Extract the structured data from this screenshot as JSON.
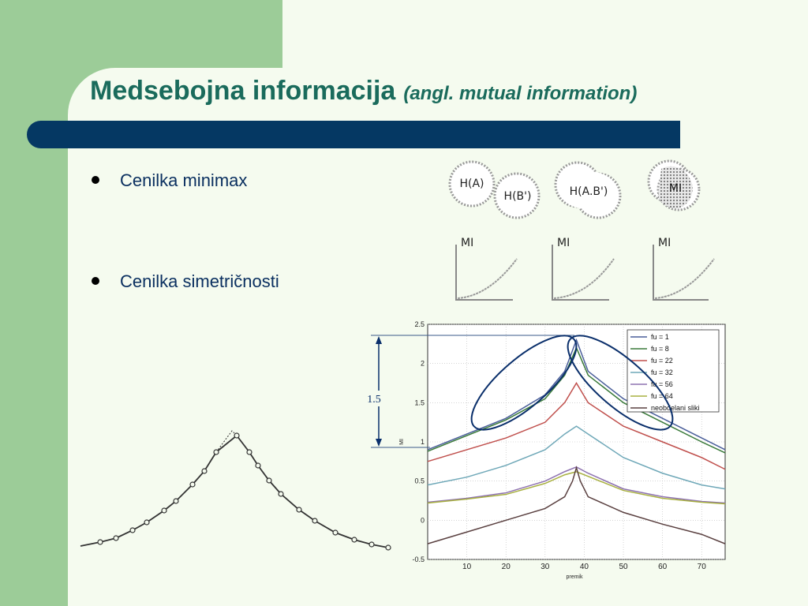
{
  "slide": {
    "title": "Medsebojna informacija",
    "subtitle": "(angl. mutual information)",
    "bullets": [
      "Cenilka minimax",
      "Cenilka simetričnosti"
    ]
  },
  "venn": {
    "labels": [
      "H(A)",
      "H(B')",
      "H(A.B')",
      "MI"
    ]
  },
  "mini_plots": {
    "label": "MI"
  },
  "annotation": {
    "label": "1.5"
  },
  "colors": {
    "title": "#1a6b5c",
    "bar": "#053863",
    "side": "#9ccc98",
    "ellipse": "#0a2f6b"
  },
  "chart_data": {
    "type": "line",
    "xlabel": "premik",
    "ylabel": "MI",
    "xlim": [
      0,
      76
    ],
    "ylim": [
      -0.5,
      2.5
    ],
    "xticks": [
      "10",
      "20",
      "30",
      "40",
      "50",
      "60",
      "70"
    ],
    "yticks": [
      "2.5",
      "2",
      "1.5",
      "1",
      "0.5",
      "0",
      "-0.5"
    ],
    "grid": true,
    "legend_position": "top-right",
    "series": [
      {
        "name": "fu = 1",
        "color": "#4a5e9a",
        "x": [
          0,
          10,
          20,
          30,
          35,
          38,
          41,
          50,
          60,
          70,
          76
        ],
        "y": [
          0.9,
          1.1,
          1.3,
          1.6,
          1.9,
          2.3,
          1.9,
          1.55,
          1.3,
          1.05,
          0.9
        ]
      },
      {
        "name": "fu = 8",
        "color": "#3a7a3a",
        "x": [
          0,
          10,
          20,
          30,
          35,
          38,
          41,
          50,
          60,
          70,
          76
        ],
        "y": [
          0.88,
          1.08,
          1.28,
          1.55,
          1.85,
          2.2,
          1.85,
          1.5,
          1.25,
          1.0,
          0.86
        ]
      },
      {
        "name": "fu = 22",
        "color": "#c0504d",
        "x": [
          0,
          10,
          20,
          30,
          35,
          38,
          41,
          50,
          60,
          70,
          76
        ],
        "y": [
          0.75,
          0.9,
          1.05,
          1.25,
          1.5,
          1.75,
          1.5,
          1.2,
          1.0,
          0.8,
          0.65
        ]
      },
      {
        "name": "fu = 32",
        "color": "#6fa8b8",
        "x": [
          0,
          10,
          20,
          30,
          35,
          38,
          41,
          50,
          60,
          70,
          76
        ],
        "y": [
          0.45,
          0.55,
          0.7,
          0.9,
          1.1,
          1.2,
          1.1,
          0.8,
          0.6,
          0.45,
          0.4
        ]
      },
      {
        "name": "fu = 56",
        "color": "#8e72b0",
        "x": [
          0,
          10,
          20,
          30,
          35,
          38,
          41,
          50,
          60,
          70,
          76
        ],
        "y": [
          0.23,
          0.28,
          0.35,
          0.5,
          0.62,
          0.68,
          0.6,
          0.4,
          0.3,
          0.24,
          0.22
        ]
      },
      {
        "name": "fu = 64",
        "color": "#a8b040",
        "x": [
          0,
          10,
          20,
          30,
          35,
          38,
          41,
          50,
          60,
          70,
          76
        ],
        "y": [
          0.22,
          0.27,
          0.33,
          0.47,
          0.58,
          0.62,
          0.56,
          0.38,
          0.28,
          0.23,
          0.21
        ]
      },
      {
        "name": "neobdelani sliki",
        "color": "#5a4040",
        "x": [
          0,
          10,
          20,
          30,
          35,
          37,
          38,
          39,
          41,
          50,
          60,
          70,
          76
        ],
        "y": [
          -0.3,
          -0.15,
          0.0,
          0.15,
          0.3,
          0.5,
          0.67,
          0.5,
          0.3,
          0.1,
          -0.05,
          -0.18,
          -0.3
        ]
      }
    ]
  }
}
